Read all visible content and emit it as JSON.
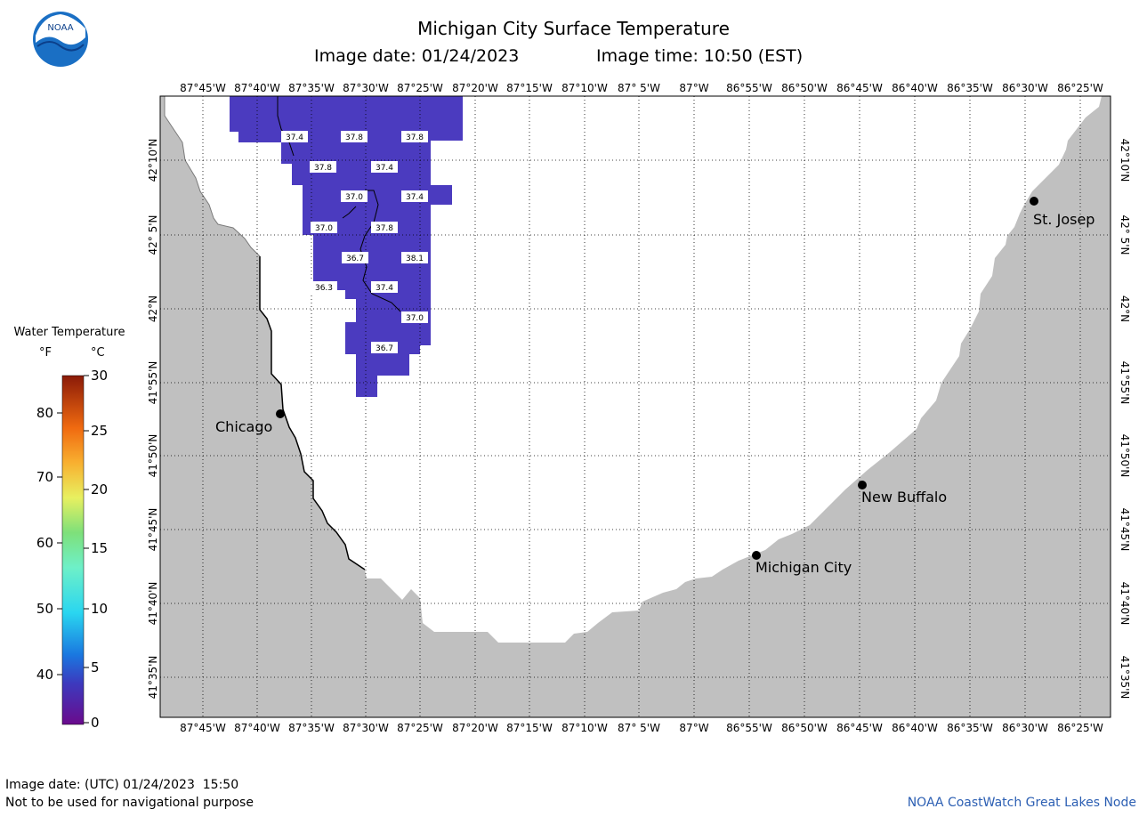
{
  "header": {
    "logo_text": "NOAA",
    "title": "Michigan City Surface Temperature",
    "image_date": "Image date: 01/24/2023",
    "image_time": "Image time: 10:50 (EST)"
  },
  "colors": {
    "land": "#c0c0c0",
    "water": "#ffffff",
    "temperature_pixels": "#4b3bbf",
    "grid": "#000000",
    "credit_text": "#2c5fb3"
  },
  "map": {
    "longitude_labels": [
      "87°45'W",
      "87°40'W",
      "87°35'W",
      "87°30'W",
      "87°25'W",
      "87°20'W",
      "87°15'W",
      "87°10'W",
      "87° 5'W",
      "87°W",
      "86°55'W",
      "86°50'W",
      "86°45'W",
      "86°40'W",
      "86°35'W",
      "86°30'W",
      "86°25'W"
    ],
    "latitude_labels": [
      "42°10'N",
      "42° 5'N",
      "42°N",
      "41°55'N",
      "41°50'N",
      "41°45'N",
      "41°40'N",
      "41°35'N"
    ],
    "cities": [
      {
        "name": "Chicago"
      },
      {
        "name": "St. Josep"
      },
      {
        "name": "New Buffalo"
      },
      {
        "name": "Michigan City"
      }
    ],
    "temperature_readings_f": [
      "37.4",
      "37.8",
      "37.8",
      "37.8",
      "37.4",
      "37.0",
      "37.4",
      "37.0",
      "37.8",
      "36.7",
      "38.1",
      "36.3",
      "37.4",
      "37.0",
      "36.7"
    ]
  },
  "legend": {
    "title": "Water Temperature",
    "unit_f": "°F",
    "unit_c": "°C",
    "f_ticks": [
      "80",
      "70",
      "60",
      "50",
      "40"
    ],
    "c_ticks": [
      "30",
      "25",
      "20",
      "15",
      "10",
      "5",
      "0"
    ]
  },
  "footer": {
    "utc_date": "Image date: (UTC) 01/24/2023  15:50",
    "disclaimer": "Not to be used for navigational purpose",
    "credit": "NOAA CoastWatch Great Lakes Node"
  }
}
